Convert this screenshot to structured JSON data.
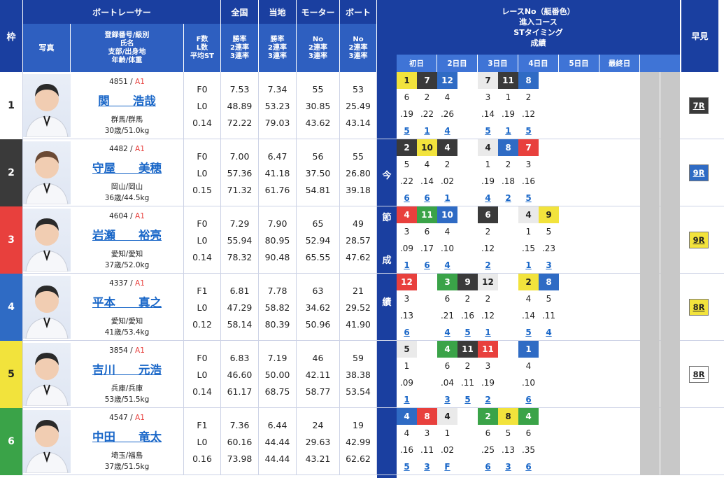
{
  "header": {
    "waku": "枠",
    "racer": "ボートレーサー",
    "photo": "写真",
    "info_lines": [
      "登録番号/級別",
      "氏名",
      "支部/出身地",
      "年齢/体重"
    ],
    "fl_lines": [
      "F数",
      "L数",
      "平均ST"
    ],
    "zenkoku": "全国",
    "touchi": "当地",
    "motor": "モーター",
    "boat": "ボート",
    "rate_lines": [
      "勝率",
      "2連率",
      "3連率"
    ],
    "no_rate_lines": [
      "No",
      "2連率",
      "3連率"
    ],
    "race_lines": [
      "レースNo（艇番色）",
      "進入コース",
      "STタイミング",
      "成績"
    ],
    "days": [
      "初日",
      "2日目",
      "3日目",
      "4日目",
      "5日目",
      "最終日"
    ],
    "hayami": "早見",
    "konsetsu": [
      "今",
      "節",
      "成",
      "績"
    ]
  },
  "colors": {
    "lane1": "#ffffff",
    "lane2": "#3a3a3a",
    "lane3": "#e8403d",
    "lane4": "#2f6bc4",
    "lane5": "#f2e33c",
    "lane6": "#3aa348",
    "header_dark": "#1a3fa0",
    "header_mid": "#2e5fc0",
    "day_header": "#3f74d6"
  },
  "racers": [
    {
      "waku": "1",
      "reg": "4851",
      "cls": "A1",
      "name": "関　　浩哉",
      "branch": "群馬/群馬",
      "age_wt": "30歳/51.0kg",
      "fl": [
        "F0",
        "L0",
        "0.14"
      ],
      "zenkoku": [
        "7.53",
        "48.89",
        "72.22"
      ],
      "touchi": [
        "7.34",
        "53.23",
        "79.03"
      ],
      "motor": [
        "55",
        "30.85",
        "43.62"
      ],
      "boat": [
        "53",
        "25.49",
        "43.14"
      ],
      "hayami": "7R",
      "results": [
        [
          "1",
          "6",
          ".19",
          "5"
        ],
        [
          "7",
          "2",
          ".22",
          "1"
        ],
        [
          "12",
          "4",
          ".26",
          "4"
        ],
        null,
        [
          "7",
          "3",
          ".14",
          "5"
        ],
        [
          "11",
          "1",
          ".19",
          "1"
        ],
        [
          "8",
          "2",
          ".12",
          "5"
        ],
        null,
        null,
        null,
        null,
        null
      ]
    },
    {
      "waku": "2",
      "reg": "4482",
      "cls": "A1",
      "name": "守屋　　美穂",
      "branch": "岡山/岡山",
      "age_wt": "36歳/44.5kg",
      "fl": [
        "F0",
        "L0",
        "0.15"
      ],
      "zenkoku": [
        "7.00",
        "57.36",
        "71.32"
      ],
      "touchi": [
        "6.47",
        "41.18",
        "61.76"
      ],
      "motor": [
        "56",
        "37.50",
        "54.81"
      ],
      "boat": [
        "55",
        "26.80",
        "39.18"
      ],
      "hayami": "9R",
      "results": [
        [
          "2",
          "5",
          ".22",
          "6"
        ],
        [
          "10",
          "4",
          ".14",
          "6"
        ],
        [
          "4",
          "2",
          ".02",
          "1"
        ],
        null,
        [
          "4",
          "1",
          ".19",
          "4"
        ],
        [
          "8",
          "2",
          ".18",
          "2"
        ],
        [
          "7",
          "3",
          ".16",
          "5"
        ],
        null,
        null,
        null,
        null,
        null
      ]
    },
    {
      "waku": "3",
      "reg": "4604",
      "cls": "A1",
      "name": "岩瀬　　裕亮",
      "branch": "愛知/愛知",
      "age_wt": "37歳/52.0kg",
      "fl": [
        "F0",
        "L0",
        "0.14"
      ],
      "zenkoku": [
        "7.29",
        "55.94",
        "78.32"
      ],
      "touchi": [
        "7.90",
        "80.95",
        "90.48"
      ],
      "motor": [
        "65",
        "52.94",
        "65.55"
      ],
      "boat": [
        "49",
        "28.57",
        "47.62"
      ],
      "hayami": "9R",
      "results": [
        [
          "4",
          "3",
          ".09",
          "1"
        ],
        [
          "11",
          "6",
          ".17",
          "6"
        ],
        [
          "10",
          "4",
          ".10",
          "4"
        ],
        null,
        [
          "6",
          "2",
          ".12",
          "2"
        ],
        null,
        [
          "4",
          "1",
          ".15",
          "1"
        ],
        [
          "9",
          "5",
          ".23",
          "3"
        ],
        null,
        null,
        null,
        null
      ]
    },
    {
      "waku": "4",
      "reg": "4337",
      "cls": "A1",
      "name": "平本　　真之",
      "branch": "愛知/愛知",
      "age_wt": "41歳/53.4kg",
      "fl": [
        "F1",
        "L0",
        "0.12"
      ],
      "zenkoku": [
        "6.81",
        "47.29",
        "58.14"
      ],
      "touchi": [
        "7.78",
        "58.82",
        "80.39"
      ],
      "motor": [
        "63",
        "34.62",
        "50.96"
      ],
      "boat": [
        "21",
        "29.52",
        "41.90"
      ],
      "hayami": "8R",
      "results": [
        [
          "12",
          "3",
          ".13",
          "6"
        ],
        null,
        [
          "3",
          "6",
          ".21",
          "4"
        ],
        [
          "9",
          "2",
          ".16",
          "5"
        ],
        [
          "12",
          "2",
          ".12",
          "1"
        ],
        null,
        [
          "2",
          "4",
          ".14",
          "5"
        ],
        [
          "8",
          "5",
          ".11",
          "4"
        ],
        null,
        null,
        null,
        null
      ]
    },
    {
      "waku": "5",
      "reg": "3854",
      "cls": "A1",
      "name": "吉川　　元浩",
      "branch": "兵庫/兵庫",
      "age_wt": "53歳/51.5kg",
      "fl": [
        "F0",
        "L0",
        "0.14"
      ],
      "zenkoku": [
        "6.83",
        "46.60",
        "61.17"
      ],
      "touchi": [
        "7.19",
        "50.00",
        "68.75"
      ],
      "motor": [
        "46",
        "42.11",
        "58.77"
      ],
      "boat": [
        "59",
        "38.38",
        "53.54"
      ],
      "hayami": "8R",
      "results": [
        [
          "5",
          "1",
          ".09",
          "1"
        ],
        null,
        [
          "4",
          "6",
          ".04",
          "3"
        ],
        [
          "11",
          "2",
          ".11",
          "5"
        ],
        [
          "11",
          "3",
          ".19",
          "2"
        ],
        null,
        [
          "1",
          "4",
          ".10",
          "6"
        ],
        null,
        null,
        null,
        null,
        null
      ]
    },
    {
      "waku": "6",
      "reg": "4547",
      "cls": "A1",
      "name": "中田　　竜太",
      "branch": "埼玉/福島",
      "age_wt": "37歳/51.5kg",
      "fl": [
        "F1",
        "L0",
        "0.16"
      ],
      "zenkoku": [
        "7.36",
        "60.16",
        "73.98"
      ],
      "touchi": [
        "6.44",
        "44.44",
        "44.44"
      ],
      "motor": [
        "24",
        "29.63",
        "43.21"
      ],
      "boat": [
        "19",
        "42.99",
        "62.62"
      ],
      "hayami": "",
      "results": [
        [
          "4",
          "4",
          ".16",
          "5"
        ],
        [
          "8",
          "3",
          ".11",
          "3"
        ],
        [
          "4",
          "1",
          ".02",
          "F"
        ],
        null,
        [
          "2",
          "6",
          ".25",
          "6"
        ],
        [
          "8",
          "5",
          ".13",
          "3"
        ],
        [
          "4",
          "6",
          ".35",
          "6"
        ],
        null,
        null,
        null,
        null,
        null
      ]
    }
  ],
  "result_lane_colors": [
    [
      "5",
      "2",
      "4",
      null,
      "1",
      "2",
      "4",
      null,
      null,
      null,
      null,
      null
    ],
    [
      "2",
      "5",
      "2",
      null,
      "1",
      "4",
      "3",
      null,
      null,
      null,
      null,
      null
    ],
    [
      "3",
      "6",
      "4",
      null,
      "2",
      null,
      "1",
      "5",
      null,
      null,
      null,
      null
    ],
    [
      "3",
      null,
      "6",
      "2",
      "1",
      null,
      "5",
      "4",
      null,
      null,
      null,
      null
    ],
    [
      "1",
      null,
      "6",
      "2",
      "3",
      null,
      "4",
      null,
      null,
      null,
      null,
      null
    ],
    [
      "4",
      "3",
      "1",
      null,
      "6",
      "5",
      "6",
      null,
      null,
      null,
      null,
      null
    ]
  ],
  "hayami_colors": [
    "#3a3a3a",
    "#2f6bc4",
    "#f2e33c",
    "#f2e33c",
    "#ffffff",
    ""
  ]
}
